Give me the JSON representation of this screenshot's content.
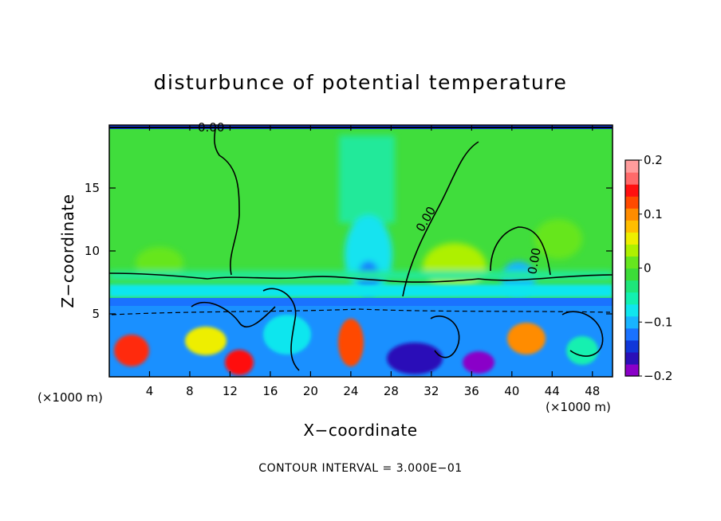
{
  "chart_data": {
    "type": "heatmap",
    "title": "disturbunce of potential temperature",
    "xlabel": "X−coordinate",
    "ylabel": "Z−coordinate",
    "x_unit_left": "(×1000 m)",
    "x_unit_right": "(×1000 m)",
    "x_ticks": [
      4,
      8,
      12,
      16,
      20,
      24,
      28,
      32,
      36,
      40,
      44,
      48
    ],
    "x_tick_labels": [
      "4",
      "8",
      "12",
      "16",
      "20",
      "24",
      "28",
      "32",
      "36",
      "40",
      "44",
      "48"
    ],
    "y_ticks": [
      5,
      10,
      15
    ],
    "y_tick_labels": [
      "5",
      "10",
      "15"
    ],
    "xlim": [
      0,
      50
    ],
    "ylim": [
      0,
      20
    ],
    "contour_label": "0.00",
    "contour_interval_text": "CONTOUR INTERVAL = 3.000E−01",
    "colorbar": {
      "range": [
        -0.2,
        0.2
      ],
      "tick_values": [
        0.2,
        0.1,
        0,
        -0.1,
        -0.2
      ],
      "tick_labels": [
        "0.2",
        "0.1",
        "0",
        "−0.1",
        "−0.2"
      ],
      "colors": [
        "#8a00c8",
        "#2a10b8",
        "#1037d8",
        "#1a72ff",
        "#19b4ff",
        "#10e6ee",
        "#12f0b0",
        "#1ee67a",
        "#3cdc38",
        "#66e61e",
        "#aef000",
        "#eeee00",
        "#ffbe00",
        "#ff8c00",
        "#ff4a00",
        "#ff1010",
        "#ff6a6a",
        "#ff9c9c"
      ]
    },
    "grid": false,
    "legend": "colorbar-right"
  }
}
